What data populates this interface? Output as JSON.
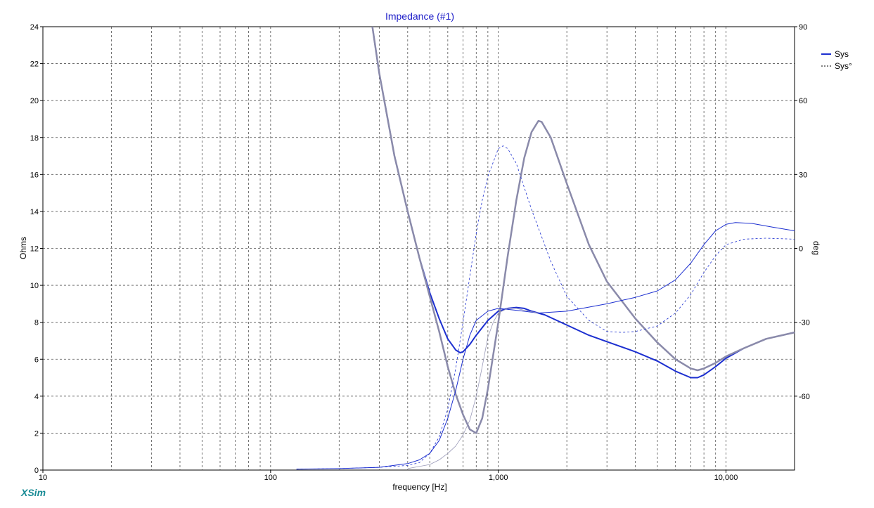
{
  "chart_data": {
    "type": "line",
    "title": "Impedance (#1)",
    "xlabel": "frequency [Hz]",
    "ylabel": "Ohms",
    "y2label": "deg",
    "xscale": "log",
    "xlim": [
      10,
      20000
    ],
    "ylim": [
      0,
      24
    ],
    "y2lim": [
      -90,
      90
    ],
    "xticks": [
      {
        "value": 10,
        "label": "10"
      },
      {
        "value": 100,
        "label": "100"
      },
      {
        "value": 1000,
        "label": "1,000"
      },
      {
        "value": 10000,
        "label": "10,000"
      }
    ],
    "yticks": [
      0,
      2,
      4,
      6,
      8,
      10,
      12,
      14,
      16,
      18,
      20,
      22,
      24
    ],
    "y2ticks": [
      {
        "value": -60,
        "label": "-60"
      },
      {
        "value": -30,
        "label": "-30"
      },
      {
        "value": 0,
        "label": "0"
      },
      {
        "value": 30,
        "label": "30"
      },
      {
        "value": 60,
        "label": "60"
      },
      {
        "value": 90,
        "label": "90"
      }
    ],
    "grid": true,
    "legend_position": "top-right",
    "legend": [
      {
        "label": "Sys",
        "style": "solid"
      },
      {
        "label": "Sys°",
        "style": "dashed"
      }
    ],
    "series": [
      {
        "name": "Sys",
        "axis": "left",
        "color": "#1c2fd0",
        "width": 2,
        "dash": "",
        "points": [
          [
            280,
            24
          ],
          [
            300,
            21.5
          ],
          [
            350,
            17
          ],
          [
            400,
            14
          ],
          [
            450,
            11.5
          ],
          [
            500,
            9.6
          ],
          [
            550,
            8.2
          ],
          [
            600,
            7.1
          ],
          [
            650,
            6.5
          ],
          [
            680,
            6.35
          ],
          [
            700,
            6.4
          ],
          [
            750,
            6.8
          ],
          [
            800,
            7.3
          ],
          [
            900,
            8.1
          ],
          [
            1000,
            8.6
          ],
          [
            1100,
            8.75
          ],
          [
            1200,
            8.8
          ],
          [
            1300,
            8.75
          ],
          [
            1400,
            8.6
          ],
          [
            1600,
            8.4
          ],
          [
            2000,
            7.85
          ],
          [
            2500,
            7.3
          ],
          [
            3000,
            6.95
          ],
          [
            4000,
            6.4
          ],
          [
            5000,
            5.9
          ],
          [
            6000,
            5.35
          ],
          [
            7000,
            5.0
          ],
          [
            7500,
            5.0
          ],
          [
            8000,
            5.15
          ],
          [
            9000,
            5.6
          ],
          [
            10000,
            6.05
          ],
          [
            12000,
            6.6
          ],
          [
            15000,
            7.1
          ],
          [
            20000,
            7.45
          ]
        ]
      },
      {
        "name": "Sys",
        "axis": "left",
        "color": "#8a8aaa",
        "width": 2.5,
        "dash": "",
        "points": [
          [
            280,
            24
          ],
          [
            300,
            21.5
          ],
          [
            350,
            17
          ],
          [
            400,
            14
          ],
          [
            450,
            11.5
          ],
          [
            500,
            9.4
          ],
          [
            550,
            7.5
          ],
          [
            600,
            5.6
          ],
          [
            650,
            4.1
          ],
          [
            700,
            3.0
          ],
          [
            750,
            2.2
          ],
          [
            800,
            2.0
          ],
          [
            850,
            2.8
          ],
          [
            900,
            4.4
          ],
          [
            1000,
            8.0
          ],
          [
            1100,
            11.6
          ],
          [
            1200,
            14.6
          ],
          [
            1300,
            16.9
          ],
          [
            1400,
            18.3
          ],
          [
            1500,
            18.9
          ],
          [
            1550,
            18.85
          ],
          [
            1700,
            18.0
          ],
          [
            2000,
            15.5
          ],
          [
            2500,
            12.2
          ],
          [
            3000,
            10.2
          ],
          [
            4000,
            8.2
          ],
          [
            5000,
            6.9
          ],
          [
            6000,
            6.0
          ],
          [
            7000,
            5.5
          ],
          [
            7500,
            5.4
          ],
          [
            8000,
            5.5
          ],
          [
            9000,
            5.8
          ],
          [
            10000,
            6.15
          ],
          [
            12000,
            6.6
          ],
          [
            15000,
            7.1
          ],
          [
            20000,
            7.45
          ]
        ]
      },
      {
        "name": "Sys",
        "axis": "left",
        "color": "#1c2fd0",
        "width": 1,
        "dash": "",
        "points": [
          [
            130,
            0.05
          ],
          [
            200,
            0.08
          ],
          [
            300,
            0.15
          ],
          [
            400,
            0.35
          ],
          [
            450,
            0.55
          ],
          [
            500,
            0.9
          ],
          [
            550,
            1.6
          ],
          [
            600,
            2.8
          ],
          [
            650,
            4.3
          ],
          [
            700,
            6.0
          ],
          [
            750,
            7.3
          ],
          [
            800,
            8.1
          ],
          [
            900,
            8.6
          ],
          [
            1000,
            8.75
          ],
          [
            1200,
            8.65
          ],
          [
            1500,
            8.5
          ],
          [
            2000,
            8.6
          ],
          [
            3000,
            9.0
          ],
          [
            4000,
            9.35
          ],
          [
            5000,
            9.7
          ],
          [
            6000,
            10.3
          ],
          [
            7000,
            11.2
          ],
          [
            8000,
            12.2
          ],
          [
            9000,
            12.95
          ],
          [
            10000,
            13.3
          ],
          [
            11000,
            13.4
          ],
          [
            13000,
            13.35
          ],
          [
            16000,
            13.15
          ],
          [
            20000,
            12.95
          ]
        ]
      },
      {
        "name": "Sys°",
        "axis": "left",
        "color": "#1c2fd0",
        "width": 0.8,
        "dash": "3,3",
        "points": [
          [
            130,
            0.05
          ],
          [
            200,
            0.08
          ],
          [
            300,
            0.15
          ],
          [
            400,
            0.25
          ],
          [
            450,
            0.4
          ],
          [
            500,
            0.9
          ],
          [
            550,
            1.8
          ],
          [
            600,
            3.3
          ],
          [
            650,
            5.5
          ],
          [
            700,
            8.0
          ],
          [
            750,
            10.5
          ],
          [
            800,
            12.8
          ],
          [
            850,
            14.6
          ],
          [
            900,
            15.9
          ],
          [
            1000,
            17.4
          ],
          [
            1050,
            17.55
          ],
          [
            1100,
            17.4
          ],
          [
            1200,
            16.6
          ],
          [
            1400,
            14.1
          ],
          [
            1700,
            11.3
          ],
          [
            2000,
            9.4
          ],
          [
            2500,
            8.1
          ],
          [
            3000,
            7.5
          ],
          [
            3500,
            7.45
          ],
          [
            4000,
            7.5
          ],
          [
            5000,
            7.8
          ],
          [
            6000,
            8.5
          ],
          [
            7000,
            9.5
          ],
          [
            8000,
            10.7
          ],
          [
            9000,
            11.6
          ],
          [
            10000,
            12.2
          ],
          [
            12000,
            12.5
          ],
          [
            15000,
            12.55
          ],
          [
            20000,
            12.5
          ]
        ]
      },
      {
        "name": "Sys°",
        "axis": "left",
        "color": "#9a9ab8",
        "width": 0.8,
        "dash": "",
        "points": [
          [
            400,
            0.08
          ],
          [
            500,
            0.3
          ],
          [
            550,
            0.55
          ],
          [
            600,
            0.9
          ],
          [
            650,
            1.3
          ],
          [
            700,
            1.9
          ],
          [
            750,
            2.7
          ],
          [
            800,
            4.0
          ],
          [
            850,
            5.6
          ],
          [
            900,
            7.2
          ],
          [
            950,
            8.0
          ],
          [
            1000,
            8.5
          ],
          [
            1100,
            8.75
          ],
          [
            1200,
            8.75
          ],
          [
            1300,
            8.65
          ],
          [
            1500,
            8.5
          ]
        ]
      }
    ]
  },
  "brand": "XSim"
}
